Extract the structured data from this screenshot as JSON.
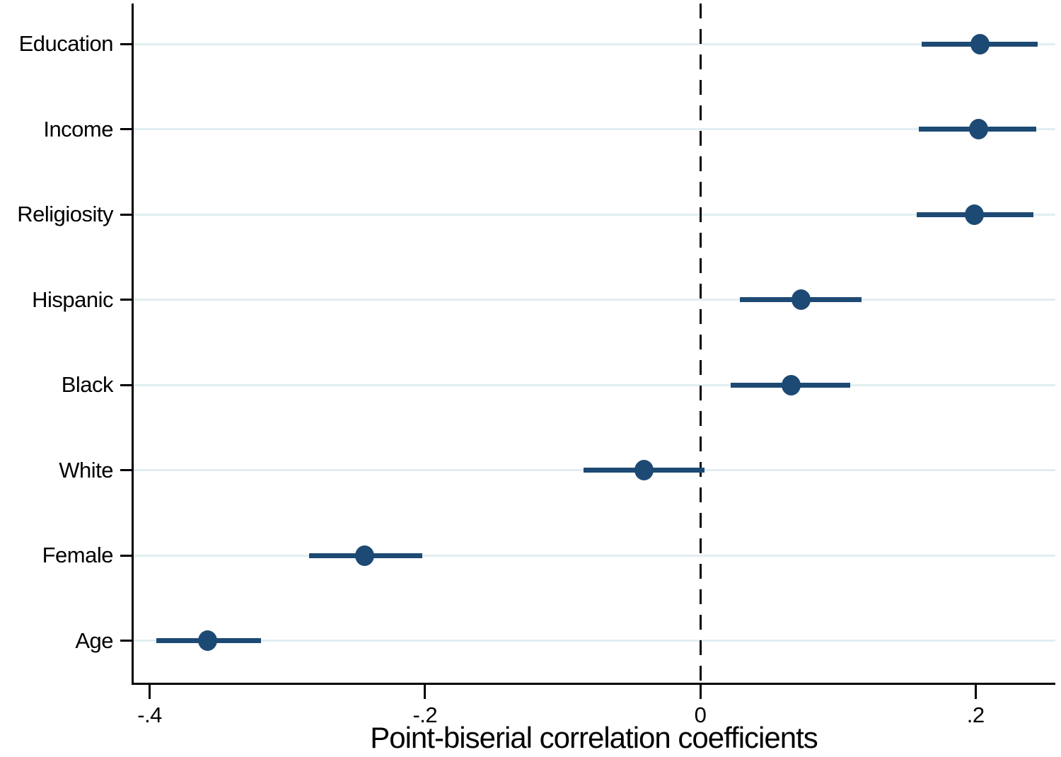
{
  "chart_data": {
    "type": "scatter",
    "subtype": "coefficient-plot-with-confidence-intervals",
    "title": "",
    "xlabel": "Point-biserial correlation coefficients",
    "ylabel": "",
    "categories": [
      "Education",
      "Income",
      "Religiosity",
      "Hispanic",
      "Black",
      "White",
      "Female",
      "Age"
    ],
    "series": [
      {
        "name": "Point-biserial correlation",
        "points": [
          {
            "category": "Education",
            "estimate": 0.203,
            "ci_low": 0.161,
            "ci_high": 0.245
          },
          {
            "category": "Income",
            "estimate": 0.202,
            "ci_low": 0.159,
            "ci_high": 0.244
          },
          {
            "category": "Religiosity",
            "estimate": 0.199,
            "ci_low": 0.157,
            "ci_high": 0.242
          },
          {
            "category": "Hispanic",
            "estimate": 0.073,
            "ci_low": 0.029,
            "ci_high": 0.117
          },
          {
            "category": "Black",
            "estimate": 0.066,
            "ci_low": 0.022,
            "ci_high": 0.109
          },
          {
            "category": "White",
            "estimate": -0.041,
            "ci_low": -0.085,
            "ci_high": 0.003
          },
          {
            "category": "Female",
            "estimate": -0.244,
            "ci_low": -0.284,
            "ci_high": -0.202
          },
          {
            "category": "Age",
            "estimate": -0.358,
            "ci_low": -0.395,
            "ci_high": -0.319
          }
        ]
      }
    ],
    "x_ticks": [
      {
        "value": -0.4,
        "label": "-.4"
      },
      {
        "value": -0.2,
        "label": "-.2"
      },
      {
        "value": 0,
        "label": "0"
      },
      {
        "value": 0.2,
        "label": ".2"
      }
    ],
    "xlim": [
      -0.413,
      0.258
    ],
    "reference_line_x": 0,
    "grid": "horizontal-category-gridlines",
    "legend": "none",
    "colors": {
      "marker": "#1d4a74",
      "ci_line": "#1d4a74",
      "gridline": "#e1eef1",
      "axis": "#000000",
      "reference_line": "#000000",
      "background": "#ffffff"
    }
  }
}
